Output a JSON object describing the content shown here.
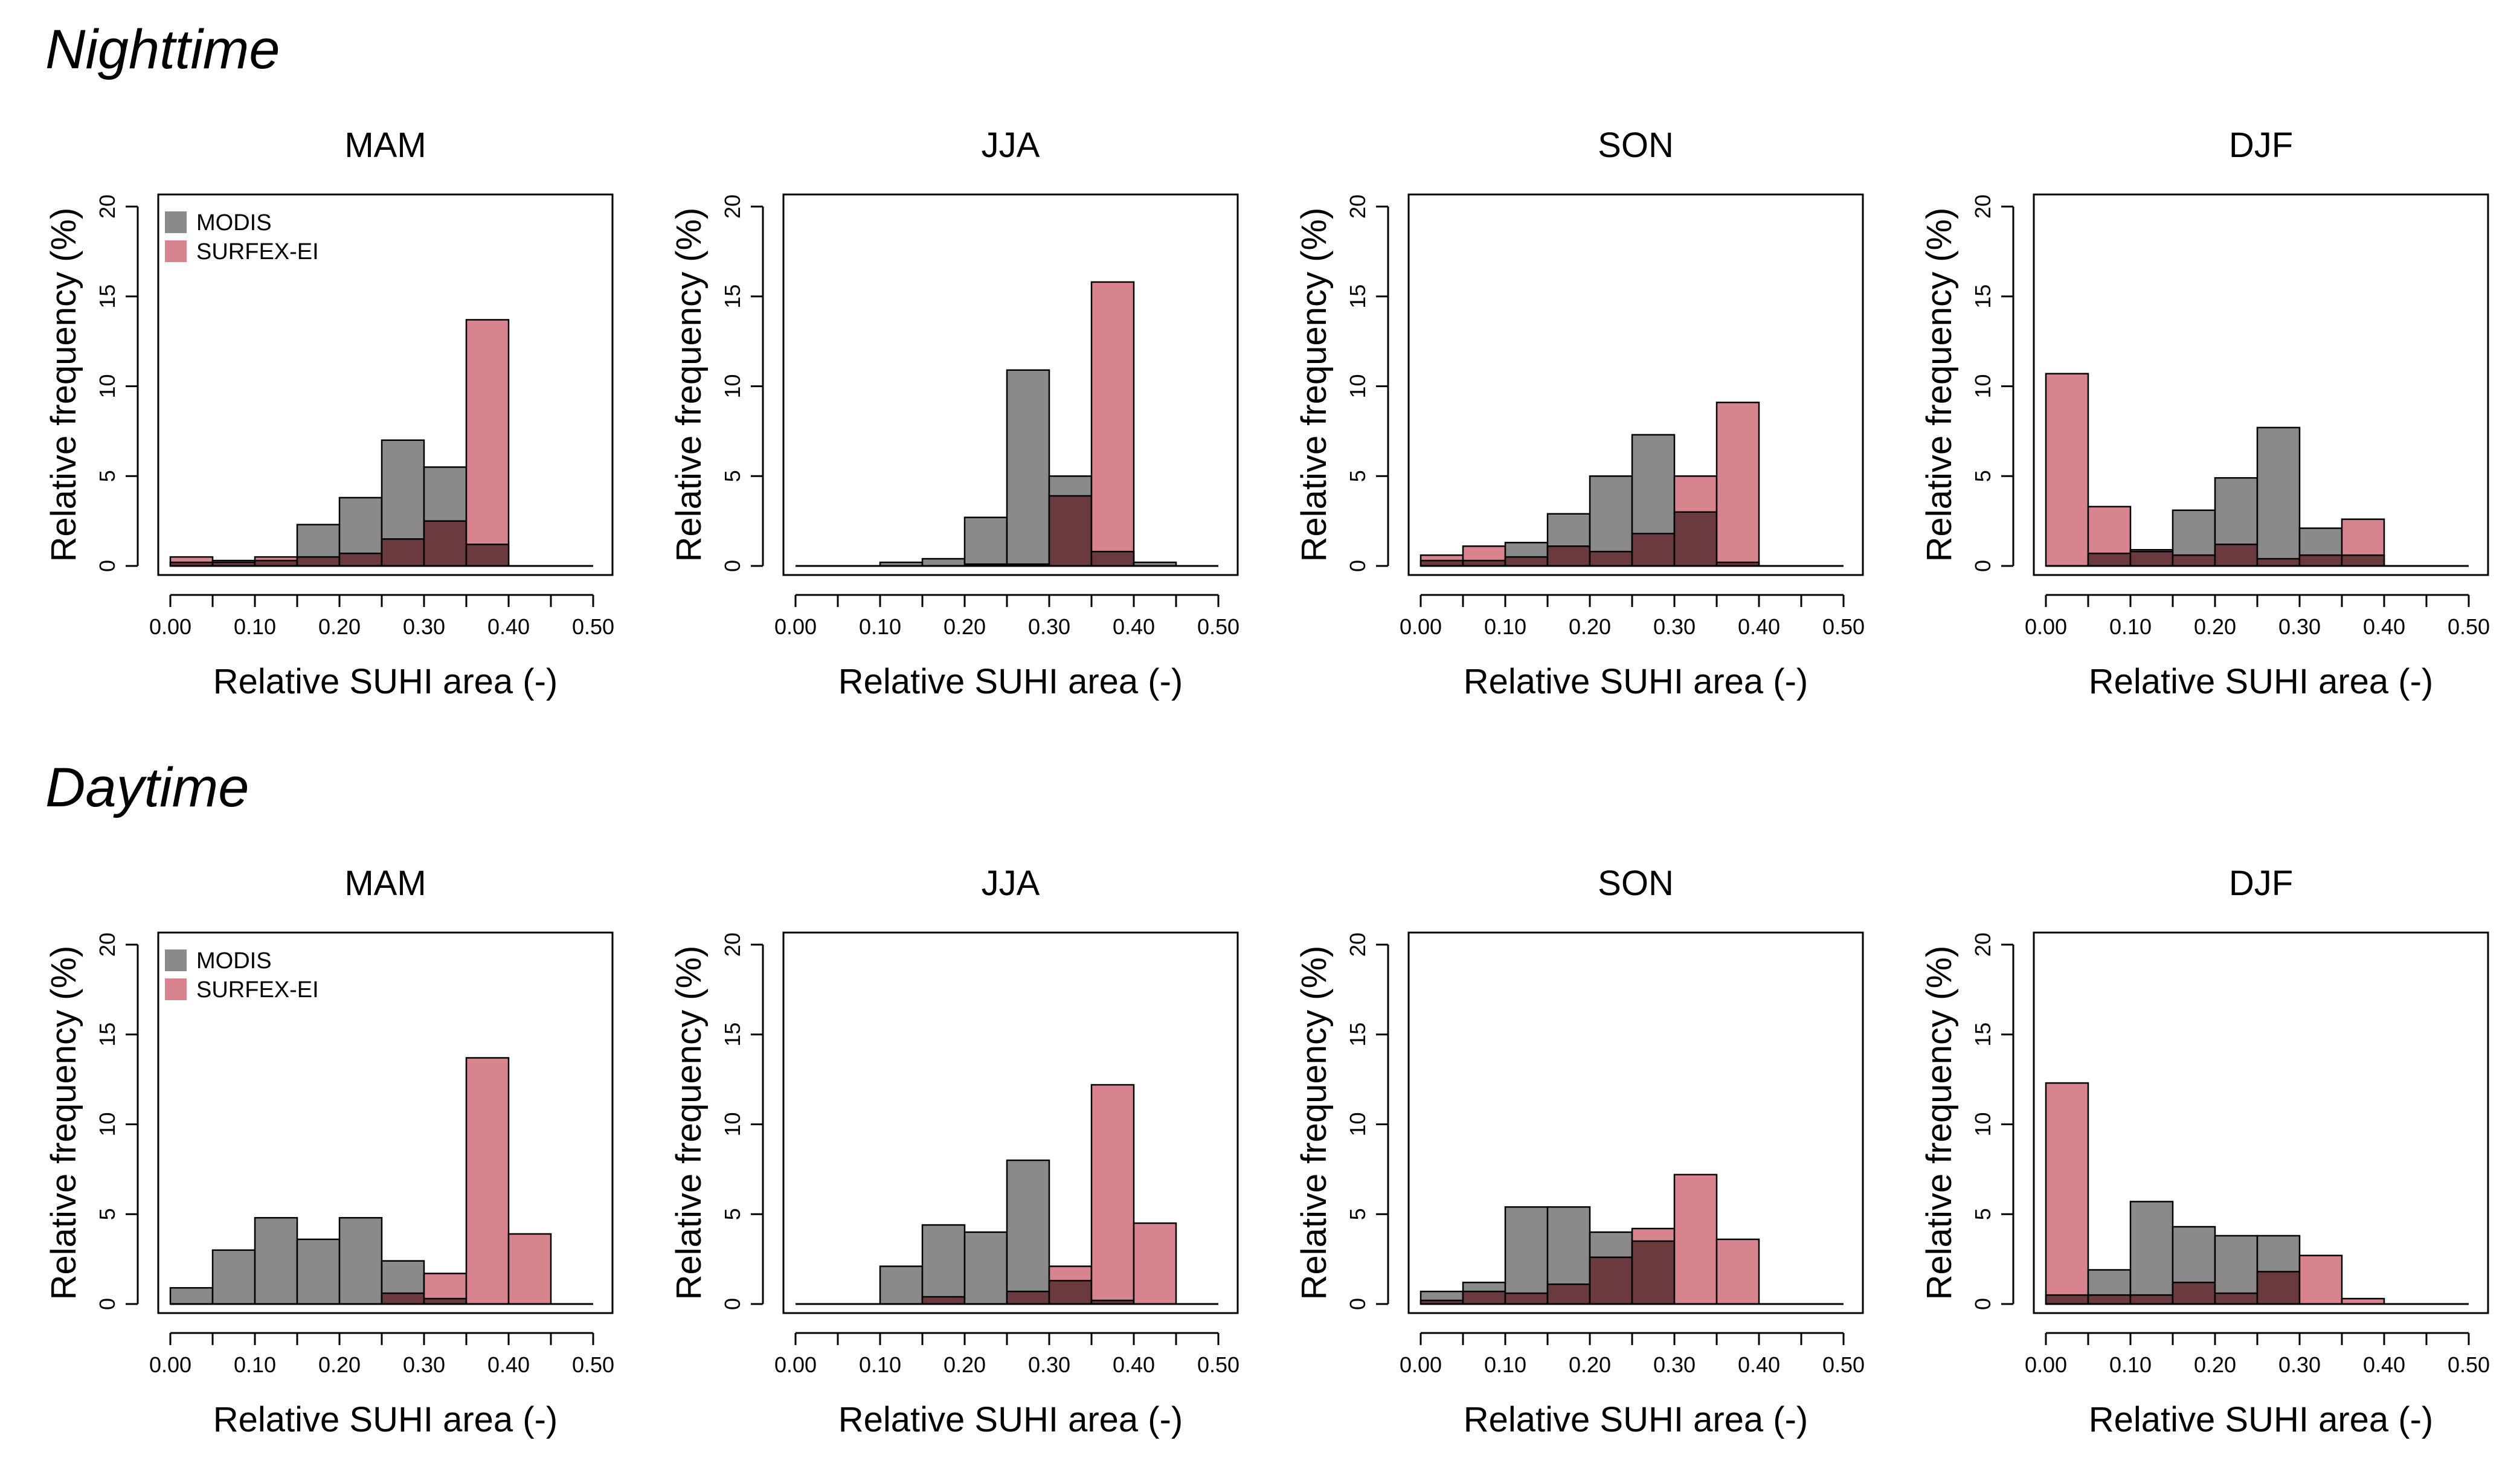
{
  "sections": [
    {
      "title": "Nighttime"
    },
    {
      "title": "Daytime"
    }
  ],
  "legend": {
    "modis": "MODIS",
    "surfex": "SURFEX-EI"
  },
  "colors": {
    "modis": "#8a8a8a",
    "surfex": "#d8848f",
    "overlap": "#6b3a3e",
    "axis": "#000000"
  },
  "chart_data": [
    {
      "id": "night-mam",
      "section": "Nighttime",
      "type": "bar",
      "title": "MAM",
      "xlabel": "Relative SUHI area (-)",
      "ylabel": "Relative frequency (%)",
      "xlim": [
        0,
        0.5
      ],
      "ylim": [
        0,
        20
      ],
      "bin_width": 0.05,
      "show_legend": true,
      "xticks": [
        "0.00",
        "0.10",
        "0.20",
        "0.30",
        "0.40",
        "0.50"
      ],
      "yticks": [
        "0",
        "5",
        "10",
        "15",
        "20"
      ],
      "bins": [
        0,
        0.05,
        0.1,
        0.15,
        0.2,
        0.25,
        0.3,
        0.35,
        0.4,
        0.45
      ],
      "series": [
        {
          "name": "MODIS",
          "values": [
            0.2,
            0.3,
            0.3,
            2.3,
            3.8,
            7.0,
            5.5,
            1.2,
            0,
            0
          ]
        },
        {
          "name": "SURFEX-EI",
          "values": [
            0.5,
            0.2,
            0.5,
            0.5,
            0.7,
            1.5,
            2.5,
            13.7,
            0,
            0
          ]
        }
      ]
    },
    {
      "id": "night-jja",
      "section": "Nighttime",
      "type": "bar",
      "title": "JJA",
      "xlabel": "Relative SUHI area (-)",
      "ylabel": "Relative frequency (%)",
      "xlim": [
        0,
        0.5
      ],
      "ylim": [
        0,
        20
      ],
      "bin_width": 0.05,
      "show_legend": false,
      "xticks": [
        "0.00",
        "0.10",
        "0.20",
        "0.30",
        "0.40",
        "0.50"
      ],
      "yticks": [
        "0",
        "5",
        "10",
        "15",
        "20"
      ],
      "bins": [
        0,
        0.05,
        0.1,
        0.15,
        0.2,
        0.25,
        0.3,
        0.35,
        0.4,
        0.45
      ],
      "series": [
        {
          "name": "MODIS",
          "values": [
            0,
            0,
            0.2,
            0.4,
            2.7,
            10.9,
            5.0,
            0.8,
            0.2,
            0
          ]
        },
        {
          "name": "SURFEX-EI",
          "values": [
            0,
            0,
            0,
            0,
            0.1,
            0.1,
            3.9,
            15.8,
            0,
            0
          ]
        }
      ]
    },
    {
      "id": "night-son",
      "section": "Nighttime",
      "type": "bar",
      "title": "SON",
      "xlabel": "Relative SUHI area (-)",
      "ylabel": "Relative frequency (%)",
      "xlim": [
        0,
        0.5
      ],
      "ylim": [
        0,
        20
      ],
      "bin_width": 0.05,
      "show_legend": false,
      "xticks": [
        "0.00",
        "0.10",
        "0.20",
        "0.30",
        "0.40",
        "0.50"
      ],
      "yticks": [
        "0",
        "5",
        "10",
        "15",
        "20"
      ],
      "bins": [
        0,
        0.05,
        0.1,
        0.15,
        0.2,
        0.25,
        0.3,
        0.35,
        0.4,
        0.45
      ],
      "series": [
        {
          "name": "MODIS",
          "values": [
            0.3,
            0.3,
            1.3,
            2.9,
            5.0,
            7.3,
            3.0,
            0.2,
            0,
            0
          ]
        },
        {
          "name": "SURFEX-EI",
          "values": [
            0.6,
            1.1,
            0.5,
            1.1,
            0.8,
            1.8,
            5.0,
            9.1,
            0,
            0
          ]
        }
      ]
    },
    {
      "id": "night-djf",
      "section": "Nighttime",
      "type": "bar",
      "title": "DJF",
      "xlabel": "Relative SUHI area (-)",
      "ylabel": "Relative frequency (%)",
      "xlim": [
        0,
        0.5
      ],
      "ylim": [
        0,
        20
      ],
      "bin_width": 0.05,
      "show_legend": false,
      "xticks": [
        "0.00",
        "0.10",
        "0.20",
        "0.30",
        "0.40",
        "0.50"
      ],
      "yticks": [
        "0",
        "5",
        "10",
        "15",
        "20"
      ],
      "bins": [
        0,
        0.05,
        0.1,
        0.15,
        0.2,
        0.25,
        0.3,
        0.35,
        0.4,
        0.45
      ],
      "series": [
        {
          "name": "MODIS",
          "values": [
            0,
            0.7,
            0.9,
            3.1,
            4.9,
            7.7,
            2.1,
            0.6,
            0,
            0
          ]
        },
        {
          "name": "SURFEX-EI",
          "values": [
            10.7,
            3.3,
            0.8,
            0.6,
            1.2,
            0.4,
            0.6,
            2.6,
            0,
            0
          ]
        }
      ]
    },
    {
      "id": "day-mam",
      "section": "Daytime",
      "type": "bar",
      "title": "MAM",
      "xlabel": "Relative SUHI area (-)",
      "ylabel": "Relative frequency (%)",
      "xlim": [
        0,
        0.5
      ],
      "ylim": [
        0,
        20
      ],
      "bin_width": 0.05,
      "show_legend": true,
      "xticks": [
        "0.00",
        "0.10",
        "0.20",
        "0.30",
        "0.40",
        "0.50"
      ],
      "yticks": [
        "0",
        "5",
        "10",
        "15",
        "20"
      ],
      "bins": [
        0,
        0.05,
        0.1,
        0.15,
        0.2,
        0.25,
        0.3,
        0.35,
        0.4,
        0.45
      ],
      "series": [
        {
          "name": "MODIS",
          "values": [
            0.9,
            3.0,
            4.8,
            3.6,
            4.8,
            2.4,
            0.3,
            0,
            0,
            0
          ]
        },
        {
          "name": "SURFEX-EI",
          "values": [
            0,
            0,
            0,
            0,
            0,
            0.6,
            1.7,
            13.7,
            3.9,
            0
          ]
        }
      ]
    },
    {
      "id": "day-jja",
      "section": "Daytime",
      "type": "bar",
      "title": "JJA",
      "xlabel": "Relative SUHI area (-)",
      "ylabel": "Relative frequency (%)",
      "xlim": [
        0,
        0.5
      ],
      "ylim": [
        0,
        20
      ],
      "bin_width": 0.05,
      "show_legend": false,
      "xticks": [
        "0.00",
        "0.10",
        "0.20",
        "0.30",
        "0.40",
        "0.50"
      ],
      "yticks": [
        "0",
        "5",
        "10",
        "15",
        "20"
      ],
      "bins": [
        0,
        0.05,
        0.1,
        0.15,
        0.2,
        0.25,
        0.3,
        0.35,
        0.4,
        0.45
      ],
      "series": [
        {
          "name": "MODIS",
          "values": [
            0,
            0,
            2.1,
            4.4,
            4.0,
            8.0,
            1.3,
            0.2,
            0,
            0
          ]
        },
        {
          "name": "SURFEX-EI",
          "values": [
            0,
            0,
            0,
            0.4,
            0,
            0.7,
            2.1,
            12.2,
            4.5,
            0
          ]
        }
      ]
    },
    {
      "id": "day-son",
      "section": "Daytime",
      "type": "bar",
      "title": "SON",
      "xlabel": "Relative SUHI area (-)",
      "ylabel": "Relative frequency (%)",
      "xlim": [
        0,
        0.5
      ],
      "ylim": [
        0,
        20
      ],
      "bin_width": 0.05,
      "show_legend": false,
      "xticks": [
        "0.00",
        "0.10",
        "0.20",
        "0.30",
        "0.40",
        "0.50"
      ],
      "yticks": [
        "0",
        "5",
        "10",
        "15",
        "20"
      ],
      "bins": [
        0,
        0.05,
        0.1,
        0.15,
        0.2,
        0.25,
        0.3,
        0.35,
        0.4,
        0.45
      ],
      "series": [
        {
          "name": "MODIS",
          "values": [
            0.7,
            1.2,
            5.4,
            5.4,
            4.0,
            3.5,
            0,
            0,
            0,
            0
          ]
        },
        {
          "name": "SURFEX-EI",
          "values": [
            0.2,
            0.7,
            0.6,
            1.1,
            2.6,
            4.2,
            7.2,
            3.6,
            0,
            0
          ]
        }
      ]
    },
    {
      "id": "day-djf",
      "section": "Daytime",
      "type": "bar",
      "title": "DJF",
      "xlabel": "Relative SUHI area (-)",
      "ylabel": "Relative frequency (%)",
      "xlim": [
        0,
        0.5
      ],
      "ylim": [
        0,
        20
      ],
      "bin_width": 0.05,
      "show_legend": false,
      "xticks": [
        "0.00",
        "0.10",
        "0.20",
        "0.30",
        "0.40",
        "0.50"
      ],
      "yticks": [
        "0",
        "5",
        "10",
        "15",
        "20"
      ],
      "bins": [
        0,
        0.05,
        0.1,
        0.15,
        0.2,
        0.25,
        0.3,
        0.35,
        0.4,
        0.45
      ],
      "series": [
        {
          "name": "MODIS",
          "values": [
            0.5,
            1.9,
            5.7,
            4.3,
            3.8,
            3.8,
            0,
            0,
            0,
            0
          ]
        },
        {
          "name": "SURFEX-EI",
          "values": [
            12.3,
            0.5,
            0.5,
            1.2,
            0.6,
            1.8,
            2.7,
            0.3,
            0,
            0
          ]
        }
      ]
    }
  ]
}
